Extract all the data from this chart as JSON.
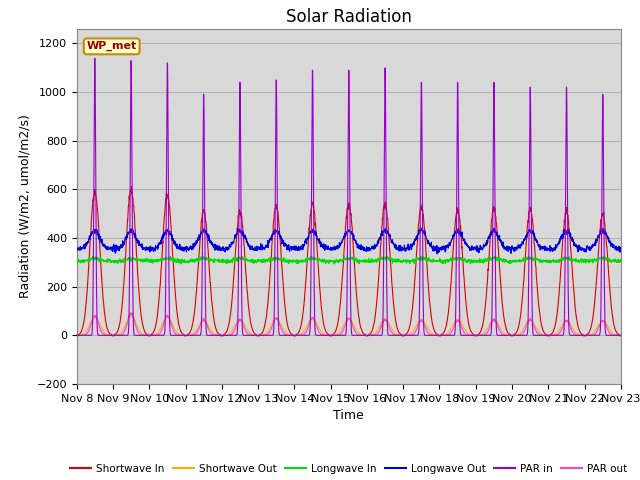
{
  "title": "Solar Radiation",
  "ylabel": "Radiation (W/m2, umol/m2/s)",
  "xlabel": "Time",
  "ylim": [
    -200,
    1260
  ],
  "yticks": [
    -200,
    0,
    200,
    400,
    600,
    800,
    1000,
    1200
  ],
  "num_days": 15,
  "station_label": "WP_met",
  "background_color": "#ffffff",
  "plot_bg_color": "#d8d8d8",
  "lines": {
    "shortwave_in": {
      "color": "#dd0000",
      "label": "Shortwave In"
    },
    "shortwave_out": {
      "color": "#ffaa00",
      "label": "Shortwave Out"
    },
    "longwave_in": {
      "color": "#00dd00",
      "label": "Longwave In"
    },
    "longwave_out": {
      "color": "#0000dd",
      "label": "Longwave Out"
    },
    "par_in": {
      "color": "#9900cc",
      "label": "PAR in"
    },
    "par_out": {
      "color": "#ff44cc",
      "label": "PAR out"
    }
  },
  "pts_per_day": 144,
  "days_x_labels": [
    "Nov 8",
    "Nov 9",
    "Nov 10",
    "Nov 11",
    "Nov 12",
    "Nov 13",
    "Nov 14",
    "Nov 15",
    "Nov 16",
    "Nov 17",
    "Nov 18",
    "Nov 19",
    "Nov 20",
    "Nov 21",
    "Nov 22",
    "Nov 23"
  ],
  "title_fontsize": 12,
  "label_fontsize": 9,
  "tick_fontsize": 8,
  "par_in_peaks": [
    1150,
    1140,
    1130,
    1000,
    1050,
    1060,
    1100,
    1100,
    1110,
    1050,
    1050,
    1050,
    1030,
    1030,
    1000
  ],
  "sw_in_peaks": [
    590,
    600,
    580,
    510,
    510,
    530,
    540,
    540,
    540,
    530,
    520,
    520,
    520,
    510,
    500
  ],
  "par_out_peaks": [
    80,
    90,
    80,
    65,
    65,
    70,
    70,
    70,
    65,
    60,
    60,
    65,
    65,
    60,
    60
  ],
  "sw_out_peaks": [
    75,
    80,
    75,
    60,
    65,
    68,
    70,
    70,
    68,
    65,
    65,
    65,
    65,
    62,
    60
  ],
  "lw_in_base": 305,
  "lw_out_base": 355,
  "lw_out_day_amp": 75
}
